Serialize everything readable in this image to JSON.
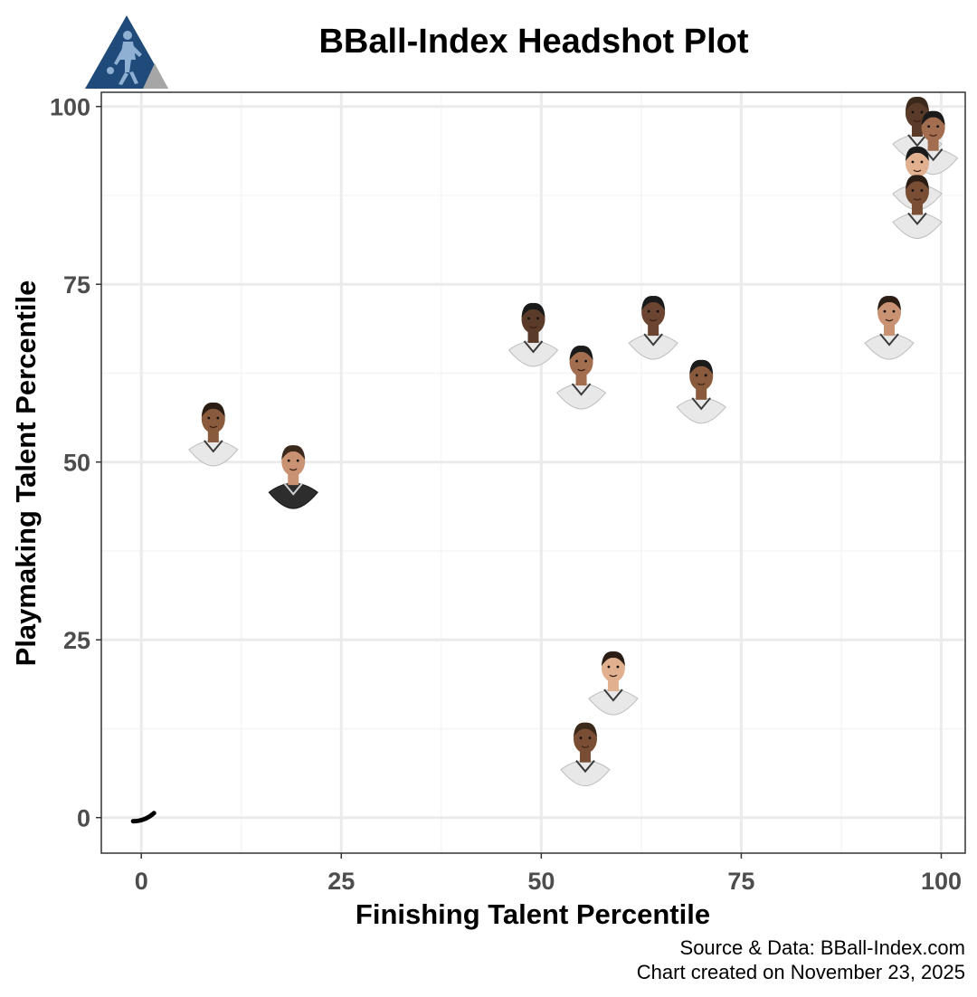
{
  "chart_data": {
    "type": "scatter",
    "title": "BBall-Index Headshot Plot",
    "xlabel": "Finishing Talent Percentile",
    "ylabel": "Playmaking Talent Percentile",
    "xlim": [
      -5,
      103
    ],
    "ylim": [
      -5,
      102
    ],
    "x_ticks": [
      0,
      25,
      50,
      75,
      100
    ],
    "y_ticks": [
      0,
      25,
      50,
      75,
      100
    ],
    "x_tick_labels": [
      "0",
      "25",
      "50",
      "75",
      "100"
    ],
    "y_tick_labels": [
      "0",
      "25",
      "50",
      "75",
      "100"
    ],
    "grid": true,
    "marker": "player headshot",
    "points": [
      {
        "x": 0,
        "y": 0
      },
      {
        "x": 9,
        "y": 52
      },
      {
        "x": 19,
        "y": 46
      },
      {
        "x": 49,
        "y": 66
      },
      {
        "x": 55,
        "y": 60
      },
      {
        "x": 59,
        "y": 17
      },
      {
        "x": 55.5,
        "y": 7
      },
      {
        "x": 64,
        "y": 67
      },
      {
        "x": 70,
        "y": 58
      },
      {
        "x": 93.5,
        "y": 67
      },
      {
        "x": 97,
        "y": 95
      },
      {
        "x": 99,
        "y": 93
      },
      {
        "x": 97,
        "y": 88
      },
      {
        "x": 97,
        "y": 84
      }
    ],
    "caption": [
      "Source & Data: BBall-Index.com",
      "Chart created on November 23, 2025"
    ],
    "colors": {
      "logo_primary": "#1f4a7a",
      "logo_secondary": "#a6a6a6",
      "grid_major": "#ebebeb",
      "grid_minor": "#f5f5f5",
      "panel_border": "#333333",
      "tick_text": "#4d4d4d",
      "jersey": "#e8e8e8",
      "jersey_trim": "#3a3a3a"
    }
  }
}
